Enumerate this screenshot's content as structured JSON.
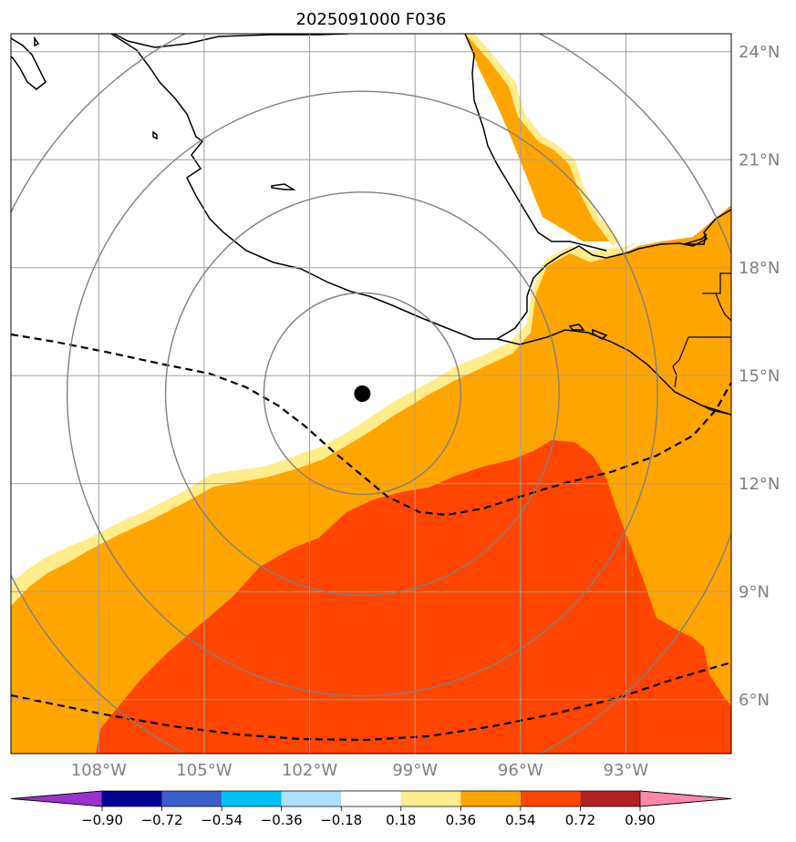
{
  "map": {
    "title": "2025091000 F036",
    "extent": {
      "lon_min": -110.5,
      "lon_max": -90,
      "lat_min": 4.5,
      "lat_max": 24.5
    },
    "center_marker": {
      "lon": -100.5,
      "lat": 14.5
    },
    "range_rings_deg": [
      2.8,
      5.6,
      8.4,
      11.2
    ],
    "gridlines": true
  },
  "axes": {
    "lon_ticks": [
      {
        "value": -108,
        "label": "108°W"
      },
      {
        "value": -105,
        "label": "105°W"
      },
      {
        "value": -102,
        "label": "102°W"
      },
      {
        "value": -99,
        "label": "99°W"
      },
      {
        "value": -96,
        "label": "96°W"
      },
      {
        "value": -93,
        "label": "93°W"
      }
    ],
    "lat_ticks": [
      {
        "value": 24,
        "label": "24°N"
      },
      {
        "value": 21,
        "label": "21°N"
      },
      {
        "value": 18,
        "label": "18°N"
      },
      {
        "value": 15,
        "label": "15°N"
      },
      {
        "value": 12,
        "label": "12°N"
      },
      {
        "value": 9,
        "label": "9°N"
      },
      {
        "value": 6,
        "label": "6°N"
      }
    ]
  },
  "colorbar": {
    "bounds": [
      -0.9,
      -0.72,
      -0.54,
      -0.36,
      -0.18,
      0.18,
      0.36,
      0.54,
      0.72,
      0.9
    ],
    "labels": [
      "−0.90",
      "−0.72",
      "−0.54",
      "−0.36",
      "−0.18",
      "0.18",
      "0.36",
      "0.54",
      "0.72",
      "0.90"
    ],
    "under_color": "#9932cc",
    "over_color": "#ff88aa",
    "colors": [
      "#000090",
      "#3a5fcd",
      "#00bfff",
      "#b0e2ff",
      "#ffffff",
      "#ffec8b",
      "#ffa500",
      "#ff4500",
      "#b22222"
    ]
  }
}
